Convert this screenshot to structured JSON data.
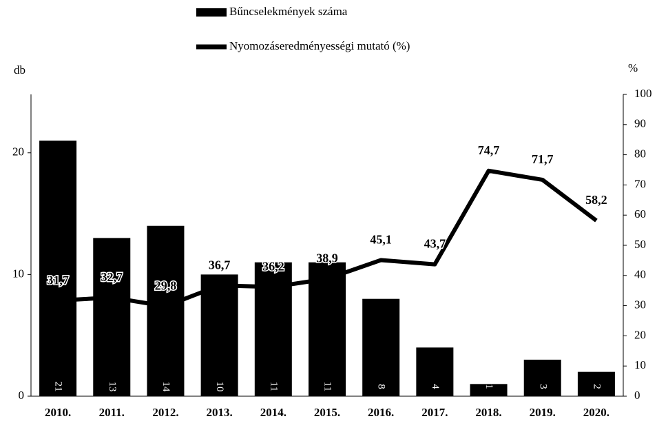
{
  "chart_data": {
    "type": "bar",
    "legend": "top",
    "categories": [
      "2010.",
      "2011.",
      "2012.",
      "2013.",
      "2014.",
      "2015.",
      "2016.",
      "2017.",
      "2018.",
      "2019.",
      "2020."
    ],
    "ylabel": "db",
    "y2label": "%",
    "ylim": [
      0,
      24.8
    ],
    "yticks": [
      0,
      10,
      20
    ],
    "y2lim": [
      0,
      100
    ],
    "y2ticks": [
      0,
      10,
      20,
      30,
      40,
      50,
      60,
      70,
      80,
      90,
      100
    ],
    "series": [
      {
        "name": "Bűncselekmények száma",
        "type": "bar",
        "color": "#000000",
        "values": [
          21,
          13,
          14,
          10,
          11,
          11,
          8,
          4,
          1,
          3,
          2
        ]
      },
      {
        "name": "Nyomozáseredményességi mutató (%)",
        "type": "line",
        "axis": "y2",
        "color": "#000000",
        "values": [
          31.7,
          32.7,
          29.8,
          36.7,
          36.2,
          38.9,
          45.1,
          43.7,
          74.7,
          71.7,
          58.2
        ],
        "value_labels": [
          "31,7",
          "32,7",
          "29,8",
          "36,7",
          "36,2",
          "38,9",
          "45,1",
          "43,7",
          "74,7",
          "71,7",
          "58,2"
        ]
      }
    ]
  }
}
